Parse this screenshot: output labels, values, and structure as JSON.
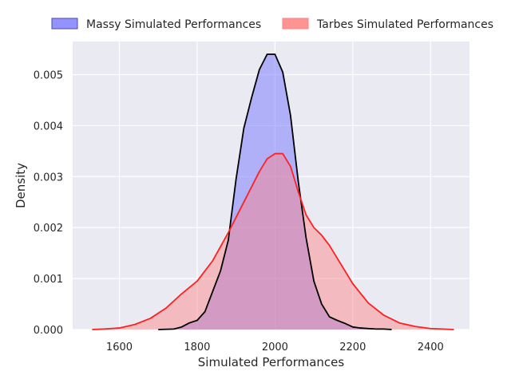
{
  "chart_data": {
    "type": "area",
    "subtype": "kde",
    "title": "",
    "xlabel": "Simulated Performances",
    "ylabel": "Density",
    "xlim": [
      1480,
      2500
    ],
    "ylim": [
      0,
      0.00565
    ],
    "xticks": [
      1600,
      1800,
      2000,
      2200,
      2400
    ],
    "yticks": [
      0.0,
      0.001,
      0.002,
      0.003,
      0.004,
      0.005
    ],
    "ytick_labels": [
      "0.000",
      "0.001",
      "0.002",
      "0.003",
      "0.004",
      "0.005"
    ],
    "grid": true,
    "legend_placement": "top",
    "background_color": "#eaeaf2",
    "series": [
      {
        "name": "Massy Simulated Performances",
        "fill_color": "#8080ff",
        "line_color": "#000000",
        "fill_opacity": 0.55,
        "x": [
          1700,
          1740,
          1760,
          1780,
          1800,
          1820,
          1840,
          1860,
          1880,
          1900,
          1920,
          1940,
          1960,
          1980,
          2000,
          2020,
          2040,
          2060,
          2080,
          2100,
          2120,
          2140,
          2160,
          2180,
          2200,
          2220,
          2240,
          2260,
          2280,
          2300
        ],
        "y": [
          0.0,
          1e-05,
          5e-05,
          0.00013,
          0.00018,
          0.00035,
          0.00075,
          0.00115,
          0.00175,
          0.00295,
          0.00395,
          0.00455,
          0.0051,
          0.0054,
          0.0054,
          0.00505,
          0.0042,
          0.0029,
          0.0018,
          0.00095,
          0.0005,
          0.00025,
          0.00018,
          0.00012,
          5e-05,
          3e-05,
          2e-05,
          1e-05,
          1e-05,
          0.0
        ]
      },
      {
        "name": "Tarbes Simulated Performances",
        "fill_color": "#ff8080",
        "line_color": "#ff2020",
        "fill_opacity": 0.45,
        "x": [
          1530,
          1560,
          1600,
          1640,
          1680,
          1720,
          1760,
          1800,
          1840,
          1880,
          1900,
          1920,
          1940,
          1960,
          1980,
          2000,
          2020,
          2040,
          2060,
          2080,
          2100,
          2120,
          2140,
          2160,
          2180,
          2200,
          2240,
          2280,
          2320,
          2360,
          2400,
          2460
        ],
        "y": [
          0.0,
          1e-05,
          3e-05,
          0.0001,
          0.00022,
          0.00042,
          0.0007,
          0.00095,
          0.00135,
          0.0019,
          0.0022,
          0.0025,
          0.0028,
          0.0031,
          0.00335,
          0.00345,
          0.00345,
          0.0032,
          0.0027,
          0.00225,
          0.002,
          0.00185,
          0.00165,
          0.0014,
          0.00115,
          0.0009,
          0.00052,
          0.00028,
          0.00013,
          6e-05,
          2e-05,
          0.0
        ]
      }
    ]
  }
}
